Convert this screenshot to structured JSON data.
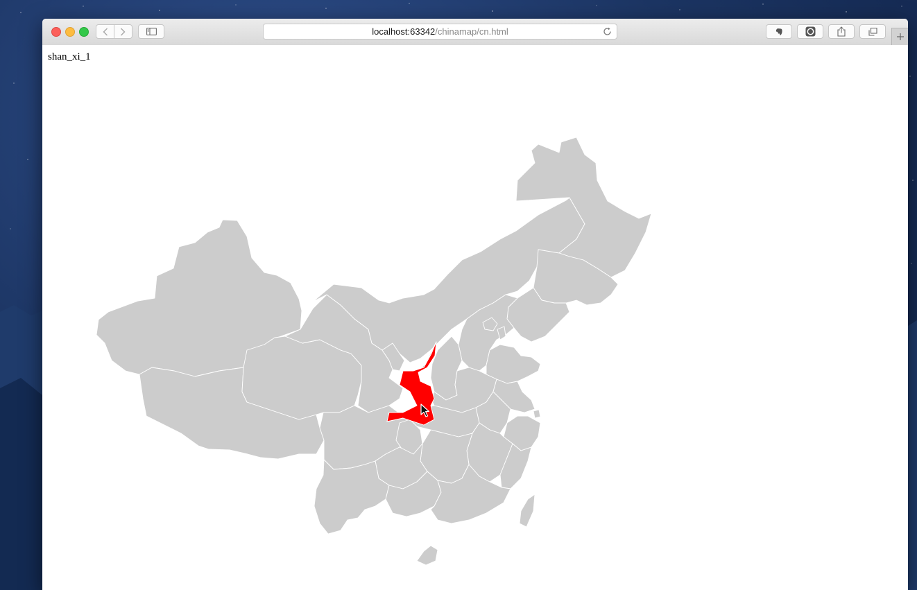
{
  "browser": {
    "url_host": "localhost:63342",
    "url_path": "/chinamap/cn.html"
  },
  "page": {
    "region_label": "shan_xi_1"
  },
  "map": {
    "default_fill": "#cccccc",
    "selected_fill": "#ff0000",
    "border_color": "#ffffff",
    "selected_region": "shan_xi_1"
  },
  "icons": {
    "back": "chevron-left-icon",
    "forward": "chevron-right-icon",
    "sidebar": "sidebar-icon",
    "reload": "reload-icon",
    "extension_1": "evernote-icon",
    "extension_2": "circle-extension-icon",
    "share": "share-icon",
    "tabs": "tab-overview-icon",
    "new_tab": "plus-icon",
    "pointer": "cursor-arrow-icon"
  },
  "colors": {
    "close": "#fc605b",
    "minimize": "#fdbc40",
    "maximize": "#34c84a"
  }
}
